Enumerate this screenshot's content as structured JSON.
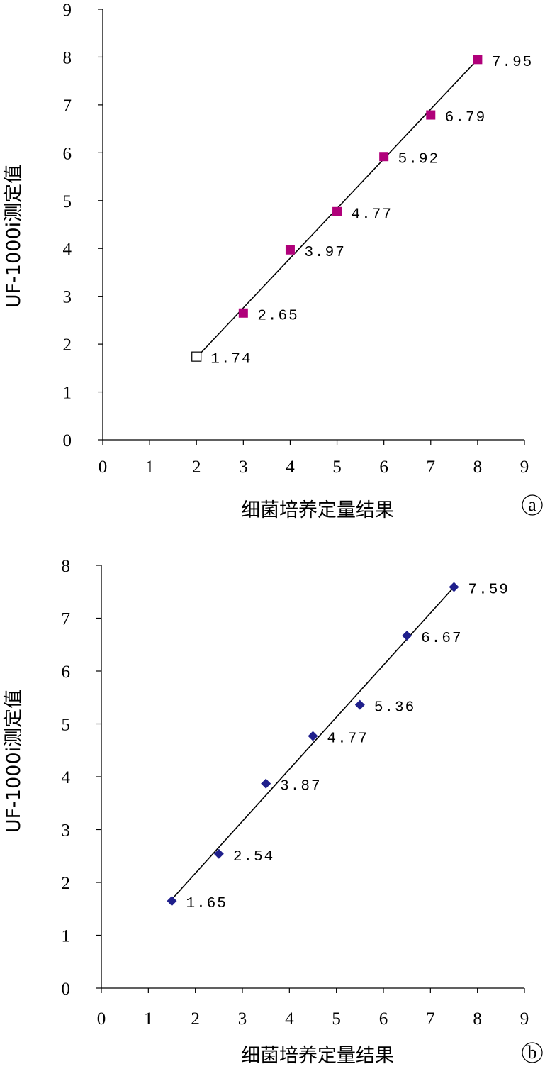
{
  "chart_data": [
    {
      "type": "scatter",
      "panel": "a",
      "xlabel": "细菌培养定量结果",
      "ylabel": "UF-1000i测定值",
      "xlim": [
        0,
        9
      ],
      "ylim": [
        0,
        9
      ],
      "x_ticks": [
        "0",
        "1",
        "2",
        "3",
        "4",
        "5",
        "6",
        "7",
        "8",
        "9"
      ],
      "y_ticks": [
        "0",
        "1",
        "2",
        "3",
        "4",
        "5",
        "6",
        "7",
        "8",
        "9"
      ],
      "grid": false,
      "marker": "square",
      "marker_color": "#b0007a",
      "points": [
        {
          "x": 2,
          "y": 1.74,
          "label": "1.74",
          "hollow": true
        },
        {
          "x": 3,
          "y": 2.65,
          "label": "2.65",
          "hollow": false
        },
        {
          "x": 4,
          "y": 3.97,
          "label": "3.97",
          "hollow": false
        },
        {
          "x": 5,
          "y": 4.77,
          "label": "4.77",
          "hollow": false
        },
        {
          "x": 6,
          "y": 5.92,
          "label": "5.92",
          "hollow": false
        },
        {
          "x": 7,
          "y": 6.79,
          "label": "6.79",
          "hollow": false
        },
        {
          "x": 8,
          "y": 7.95,
          "label": "7.95",
          "hollow": false
        }
      ],
      "trendline": {
        "x1": 2,
        "y1": 1.72,
        "x2": 8,
        "y2": 7.95
      }
    },
    {
      "type": "scatter",
      "panel": "b",
      "xlabel": "细菌培养定量结果",
      "ylabel": "UF-1000i测定值",
      "xlim": [
        0,
        9
      ],
      "ylim": [
        0,
        8
      ],
      "x_ticks": [
        "0",
        "1",
        "2",
        "3",
        "4",
        "5",
        "6",
        "7",
        "8",
        "9"
      ],
      "y_ticks": [
        "0",
        "1",
        "2",
        "3",
        "4",
        "5",
        "6",
        "7",
        "8"
      ],
      "grid": false,
      "marker": "diamond",
      "marker_color": "#1f1f8c",
      "points": [
        {
          "x": 1.5,
          "y": 1.65,
          "label": "1.65"
        },
        {
          "x": 2.5,
          "y": 2.54,
          "label": "2.54"
        },
        {
          "x": 3.5,
          "y": 3.87,
          "label": "3.87"
        },
        {
          "x": 4.5,
          "y": 4.77,
          "label": "4.77"
        },
        {
          "x": 5.5,
          "y": 5.36,
          "label": "5.36"
        },
        {
          "x": 6.5,
          "y": 6.67,
          "label": "6.67"
        },
        {
          "x": 7.5,
          "y": 7.59,
          "label": "7.59"
        }
      ],
      "trendline": {
        "x1": 1.5,
        "y1": 1.68,
        "x2": 7.5,
        "y2": 7.59
      }
    }
  ],
  "panels": {
    "a": {
      "letter": "a"
    },
    "b": {
      "letter": "b"
    }
  }
}
